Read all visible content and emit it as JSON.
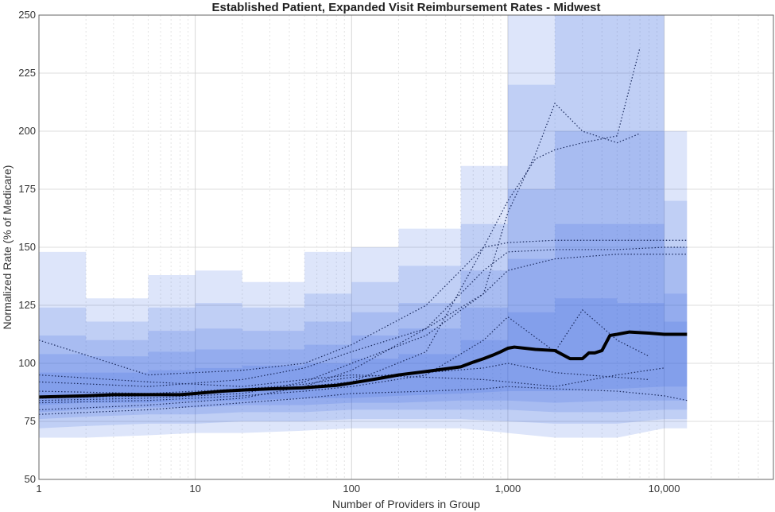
{
  "chart_data": {
    "type": "line",
    "title": "Established Patient, Expanded Visit Reimbursement Rates - Midwest",
    "xlabel": "Number of Providers in Group",
    "ylabel": "Normalized Rate (% of Medicare)",
    "x_scale": "log",
    "xlim": [
      1,
      50000
    ],
    "ylim": [
      50,
      250
    ],
    "x_ticks": [
      {
        "value": 1,
        "label": "1"
      },
      {
        "value": 10,
        "label": "10"
      },
      {
        "value": 100,
        "label": "100"
      },
      {
        "value": 1000,
        "label": "1,000"
      },
      {
        "value": 10000,
        "label": "10,000"
      }
    ],
    "y_ticks": [
      50,
      75,
      100,
      125,
      150,
      175,
      200,
      225,
      250
    ],
    "grid": true,
    "band_color": "#2b5fe0",
    "median_color": "#000000",
    "percentile_bands": [
      {
        "x": [
          1,
          2,
          5,
          10,
          20,
          50,
          100,
          200,
          500,
          1000,
          2000,
          5000,
          10000,
          14000
        ],
        "lower": [
          68,
          68,
          69,
          70,
          70,
          71,
          72,
          72,
          72,
          70,
          68,
          68,
          72,
          72
        ],
        "upper": [
          148,
          128,
          138,
          140,
          135,
          148,
          150,
          158,
          185,
          260,
          260,
          260,
          200,
          160
        ]
      },
      {
        "x": [
          1,
          2,
          5,
          10,
          20,
          50,
          100,
          200,
          500,
          1000,
          2000,
          5000,
          10000,
          14000
        ],
        "lower": [
          72,
          73,
          74,
          74,
          75,
          75,
          76,
          76,
          76,
          75,
          74,
          74,
          76,
          76
        ],
        "upper": [
          124,
          118,
          124,
          126,
          124,
          130,
          135,
          142,
          160,
          220,
          250,
          250,
          170,
          140
        ]
      },
      {
        "x": [
          1,
          2,
          5,
          10,
          20,
          50,
          100,
          200,
          500,
          1000,
          2000,
          5000,
          10000,
          14000
        ],
        "lower": [
          76,
          77,
          78,
          78,
          79,
          79,
          80,
          80,
          80,
          80,
          79,
          79,
          80,
          80
        ],
        "upper": [
          112,
          110,
          114,
          115,
          114,
          118,
          122,
          126,
          140,
          175,
          200,
          200,
          150,
          125
        ]
      },
      {
        "x": [
          1,
          2,
          5,
          10,
          20,
          50,
          100,
          200,
          500,
          1000,
          2000,
          5000,
          10000,
          14000
        ],
        "lower": [
          79,
          80,
          81,
          81,
          82,
          82,
          83,
          83,
          84,
          84,
          83,
          84,
          84,
          84
        ],
        "upper": [
          104,
          103,
          105,
          106,
          106,
          108,
          112,
          115,
          124,
          145,
          160,
          160,
          130,
          115
        ]
      },
      {
        "x": [
          1,
          2,
          5,
          10,
          20,
          50,
          100,
          200,
          500,
          1000,
          2000,
          5000,
          10000,
          14000
        ],
        "lower": [
          82,
          83,
          83,
          84,
          84,
          85,
          85,
          86,
          87,
          88,
          88,
          89,
          90,
          90
        ],
        "upper": [
          96,
          96,
          97,
          98,
          99,
          100,
          102,
          104,
          110,
          122,
          128,
          126,
          118,
          112
        ]
      }
    ],
    "median_series": {
      "x": [
        1,
        2,
        3,
        5,
        8,
        10,
        15,
        20,
        30,
        50,
        80,
        100,
        150,
        200,
        300,
        500,
        600,
        700,
        800,
        900,
        1000,
        1100,
        1500,
        2000,
        2500,
        3000,
        3300,
        3600,
        4000,
        4500,
        5000,
        6000,
        8000,
        10000,
        14000
      ],
      "y": [
        85.5,
        86,
        86.5,
        86.5,
        86.5,
        87,
        88,
        88.5,
        89,
        89.5,
        90.5,
        91.5,
        93.5,
        95,
        96.5,
        98.5,
        100.5,
        102,
        103.5,
        105,
        106.5,
        107,
        106,
        105.5,
        102,
        102,
        104.5,
        104.5,
        105.5,
        112,
        112.5,
        113.5,
        113,
        112.5,
        112.5
      ]
    },
    "dotted_series": [
      {
        "x": [
          1,
          5,
          20,
          50,
          100,
          300,
          700,
          1000,
          1500,
          2000,
          3000,
          5000,
          7000
        ],
        "y": [
          85,
          86,
          88,
          90,
          92,
          105,
          150,
          170,
          188,
          192,
          195,
          198,
          236
        ]
      },
      {
        "x": [
          1,
          5,
          20,
          50,
          100,
          300,
          700,
          1000,
          1500,
          2000,
          3000,
          5000,
          7000
        ],
        "y": [
          84,
          85,
          87,
          92,
          100,
          112,
          130,
          165,
          190,
          212,
          200,
          195,
          199
        ]
      },
      {
        "x": [
          1,
          5,
          20,
          50,
          100,
          300,
          700,
          1000,
          2000,
          5000,
          10000,
          14000
        ],
        "y": [
          110,
          95,
          97,
          100,
          108,
          125,
          150,
          152,
          153,
          153,
          153,
          153
        ]
      },
      {
        "x": [
          1,
          5,
          20,
          50,
          100,
          300,
          700,
          1000,
          2000,
          5000,
          10000,
          14000
        ],
        "y": [
          80,
          82,
          85,
          90,
          97,
          115,
          140,
          148,
          149,
          149,
          150,
          150
        ]
      },
      {
        "x": [
          1,
          5,
          20,
          50,
          100,
          300,
          700,
          1000,
          2000,
          5000,
          10000,
          14000
        ],
        "y": [
          92,
          90,
          93,
          98,
          105,
          115,
          130,
          140,
          145,
          147,
          147,
          147
        ]
      },
      {
        "x": [
          1,
          5,
          20,
          50,
          100,
          300,
          700,
          1000,
          2000,
          3000,
          5000,
          8000
        ],
        "y": [
          83,
          84,
          86,
          88,
          90,
          95,
          110,
          120,
          105,
          123,
          110,
          103
        ]
      },
      {
        "x": [
          1,
          5,
          20,
          50,
          100,
          300,
          700,
          1000,
          2000,
          5000,
          10000,
          14000
        ],
        "y": [
          78,
          80,
          83,
          85,
          87,
          88,
          89,
          90,
          89,
          88,
          86,
          84
        ]
      },
      {
        "x": [
          1,
          5,
          20,
          50,
          100,
          300,
          700,
          1000,
          2000,
          5000,
          10000
        ],
        "y": [
          95,
          92,
          90,
          93,
          95,
          94,
          93,
          92,
          90,
          95,
          98
        ]
      },
      {
        "x": [
          1,
          5,
          20,
          50,
          100,
          300,
          700,
          1000,
          2000,
          5000,
          8000
        ],
        "y": [
          88,
          87,
          89,
          91,
          94,
          96,
          98,
          100,
          96,
          94,
          93
        ]
      }
    ]
  }
}
